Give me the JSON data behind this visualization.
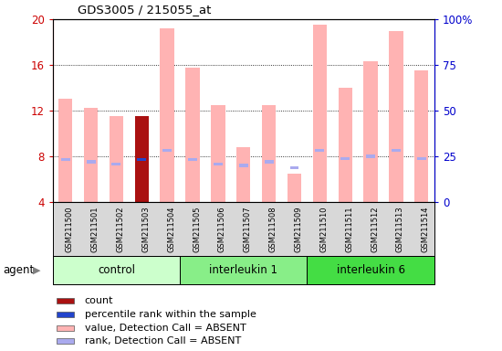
{
  "title": "GDS3005 / 215055_at",
  "samples": [
    "GSM211500",
    "GSM211501",
    "GSM211502",
    "GSM211503",
    "GSM211504",
    "GSM211505",
    "GSM211506",
    "GSM211507",
    "GSM211508",
    "GSM211509",
    "GSM211510",
    "GSM211511",
    "GSM211512",
    "GSM211513",
    "GSM211514"
  ],
  "groups": [
    {
      "label": "control",
      "start": 0,
      "end": 4
    },
    {
      "label": "interleukin 1",
      "start": 5,
      "end": 9
    },
    {
      "label": "interleukin 6",
      "start": 10,
      "end": 14
    }
  ],
  "group_face_colors": [
    "#ccffcc",
    "#88ee88",
    "#44dd44"
  ],
  "bar_values": [
    13.0,
    12.2,
    11.5,
    11.5,
    19.2,
    15.8,
    12.5,
    8.8,
    12.5,
    6.5,
    19.5,
    14.0,
    16.3,
    19.0,
    15.5
  ],
  "rank_values": [
    7.7,
    7.5,
    7.3,
    7.7,
    8.5,
    7.7,
    7.3,
    7.2,
    7.5,
    7.0,
    8.5,
    7.8,
    8.0,
    8.5,
    7.8
  ],
  "bar_colors": [
    "#ffb3b3",
    "#ffb3b3",
    "#ffb3b3",
    "#aa1111",
    "#ffb3b3",
    "#ffb3b3",
    "#ffb3b3",
    "#ffb3b3",
    "#ffb3b3",
    "#ffb3b3",
    "#ffb3b3",
    "#ffb3b3",
    "#ffb3b3",
    "#ffb3b3",
    "#ffb3b3"
  ],
  "rank_colors": [
    "#aaaaee",
    "#aaaaee",
    "#aaaaee",
    "#2244cc",
    "#aaaaee",
    "#aaaaee",
    "#aaaaee",
    "#aaaaee",
    "#aaaaee",
    "#aaaaee",
    "#aaaaee",
    "#aaaaee",
    "#aaaaee",
    "#aaaaee",
    "#aaaaee"
  ],
  "ylim_left": [
    4,
    20
  ],
  "ylim_right": [
    0,
    100
  ],
  "left_ticks": [
    4,
    8,
    12,
    16,
    20
  ],
  "right_ticks": [
    0,
    25,
    50,
    75,
    100
  ],
  "left_color": "#cc0000",
  "right_color": "#0000cc",
  "gridlines": [
    8,
    12,
    16
  ],
  "legend_items": [
    {
      "color": "#aa1111",
      "label": "count"
    },
    {
      "color": "#2244cc",
      "label": "percentile rank within the sample"
    },
    {
      "color": "#ffb3b3",
      "label": "value, Detection Call = ABSENT"
    },
    {
      "color": "#aaaaee",
      "label": "rank, Detection Call = ABSENT"
    }
  ],
  "chart_bg": "#ffffff",
  "xlabels_bg": "#d8d8d8"
}
